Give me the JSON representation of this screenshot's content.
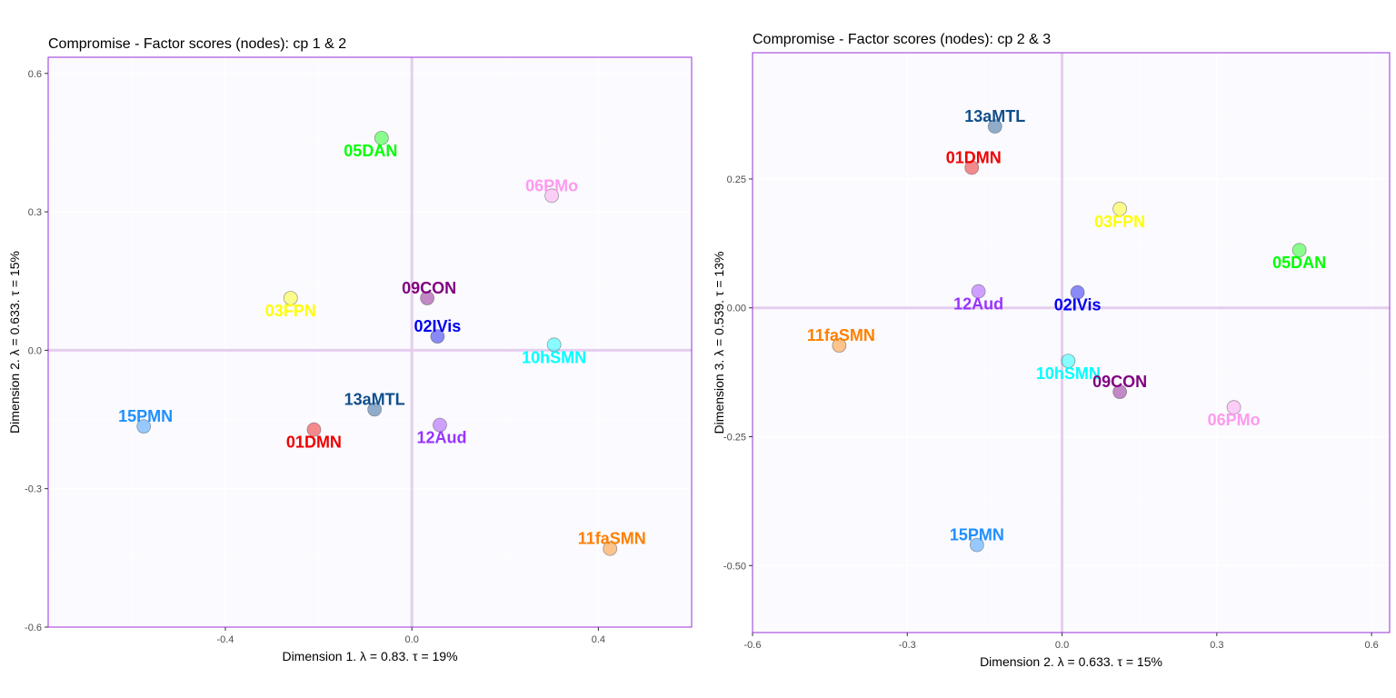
{
  "chart_data": [
    {
      "type": "scatter",
      "title": "Compromise - Factor scores (nodes): cp 1 & 2",
      "xlabel": "Dimension 1.   λ = 0.83.  τ = 19%",
      "ylabel": "Dimension 2.  λ = 0.633.  τ = 15%",
      "xlim": [
        -0.78,
        0.6
      ],
      "ylim": [
        -0.6,
        0.635
      ],
      "xticks": [
        -0.4,
        0.0,
        0.4
      ],
      "xtick_labels": [
        "-0.4",
        "0.0",
        "0.4"
      ],
      "yticks": [
        -0.6,
        -0.3,
        0.0,
        0.3,
        0.6
      ],
      "ytick_labels": [
        "-0.6",
        "-0.3",
        "0.0",
        "0.3",
        "0.6"
      ],
      "grid": true,
      "points": [
        {
          "label": "05DAN",
          "x": -0.065,
          "y": 0.46,
          "color": "#00ff00",
          "label_dx": -0.09,
          "label_dy": -0.03
        },
        {
          "label": "06PMo",
          "x": 0.3,
          "y": 0.335,
          "color": "#ff99ee",
          "label_dx": 0.02,
          "label_dy": 0.02
        },
        {
          "label": "09CON",
          "x": 0.033,
          "y": 0.113,
          "color": "#800080",
          "label_dx": 0.03,
          "label_dy": 0.02
        },
        {
          "label": "03FPN",
          "x": -0.26,
          "y": 0.113,
          "color": "#ffff00",
          "label_dx": -0.02,
          "label_dy": -0.035
        },
        {
          "label": "02IVis",
          "x": 0.055,
          "y": 0.03,
          "color": "#0000ee",
          "label_dx": 0.02,
          "label_dy": 0.02
        },
        {
          "label": "10hSMN",
          "x": 0.305,
          "y": 0.012,
          "color": "#00ffff",
          "label_dx": -0.03,
          "label_dy": -0.02
        },
        {
          "label": "13aMTL",
          "x": -0.08,
          "y": -0.128,
          "color": "#104e8b",
          "label_dx": -0.03,
          "label_dy": 0.024
        },
        {
          "label": "12Aud",
          "x": 0.06,
          "y": -0.162,
          "color": "#9933ff",
          "label_dx": 0.025,
          "label_dy": -0.028
        },
        {
          "label": "15PMN",
          "x": -0.575,
          "y": -0.165,
          "color": "#1f8fff",
          "label_dx": 0.025,
          "label_dy": 0.02
        },
        {
          "label": "01DMN",
          "x": -0.21,
          "y": -0.172,
          "color": "#ee0000",
          "label_dx": -0.03,
          "label_dy": -0.03
        },
        {
          "label": "11faSMN",
          "x": 0.425,
          "y": -0.43,
          "color": "#ff8000",
          "label_dx": 0.025,
          "label_dy": 0.02
        }
      ]
    },
    {
      "type": "scatter",
      "title": "Compromise - Factor scores (nodes): cp 2 & 3",
      "xlabel": "Dimension 2.   λ = 0.633.  τ = 15%",
      "ylabel": "Dimension 3.  λ = 0.539.  τ = 13%",
      "xlim": [
        -0.6,
        0.635
      ],
      "ylim": [
        -0.63,
        0.495
      ],
      "xticks": [
        -0.6,
        -0.3,
        0.0,
        0.3,
        0.6
      ],
      "xtick_labels": [
        "-0.6",
        "-0.3",
        "0.0",
        "0.3",
        "0.6"
      ],
      "yticks": [
        -0.5,
        -0.25,
        0.0,
        0.25
      ],
      "ytick_labels": [
        "-0.50",
        "-0.25",
        "0.00",
        "0.25"
      ],
      "grid": true,
      "points": [
        {
          "label": "13aMTL",
          "x": -0.13,
          "y": 0.352,
          "color": "#104e8b",
          "label_dx": -0.01,
          "label_dy": 0.016
        },
        {
          "label": "01DMN",
          "x": -0.175,
          "y": 0.272,
          "color": "#ee0000",
          "label_dx": 0.025,
          "label_dy": 0.016
        },
        {
          "label": "03FPN",
          "x": 0.112,
          "y": 0.192,
          "color": "#ffff00",
          "label_dx": -0.025,
          "label_dy": -0.025
        },
        {
          "label": "05DAN",
          "x": 0.46,
          "y": 0.112,
          "color": "#00ff00",
          "label_dx": -0.025,
          "label_dy": -0.025
        },
        {
          "label": "12Aud",
          "x": -0.162,
          "y": 0.032,
          "color": "#9933ff",
          "label_dx": -0.025,
          "label_dy": -0.025
        },
        {
          "label": "02IVis",
          "x": 0.03,
          "y": 0.03,
          "color": "#0000ee",
          "label_dx": 0.0,
          "label_dy": -0.025
        },
        {
          "label": "11faSMN",
          "x": -0.432,
          "y": -0.073,
          "color": "#ff8000",
          "label_dx": 0.025,
          "label_dy": 0.016
        },
        {
          "label": "10hSMN",
          "x": 0.012,
          "y": -0.103,
          "color": "#00ffff",
          "label_dx": -0.012,
          "label_dy": -0.025
        },
        {
          "label": "09CON",
          "x": 0.112,
          "y": -0.163,
          "color": "#800080",
          "label_dx": 0.0,
          "label_dy": 0.016
        },
        {
          "label": "06PMo",
          "x": 0.333,
          "y": -0.193,
          "color": "#ff99ee",
          "label_dx": -0.025,
          "label_dy": -0.025
        },
        {
          "label": "15PMN",
          "x": -0.165,
          "y": -0.46,
          "color": "#1f8fff",
          "label_dx": 0.012,
          "label_dy": 0.016
        }
      ]
    }
  ]
}
